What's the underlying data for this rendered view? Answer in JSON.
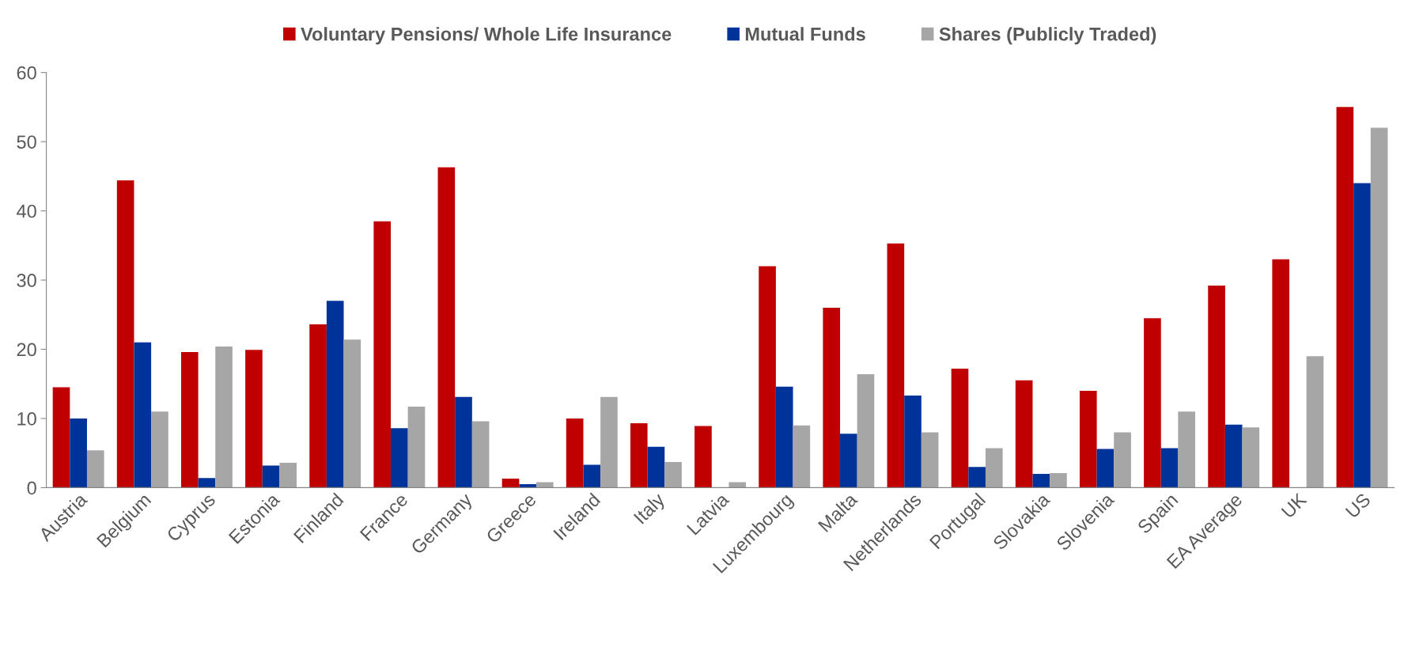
{
  "chart_data": {
    "type": "bar",
    "categories": [
      "Austria",
      "Belgium",
      "Cyprus",
      "Estonia",
      "Finland",
      "France",
      "Germany",
      "Greece",
      "Ireland",
      "Italy",
      "Latvia",
      "Luxembourg",
      "Malta",
      "Netherlands",
      "Portugal",
      "Slovakia",
      "Slovenia",
      "Spain",
      "EA Average",
      "UK",
      "US"
    ],
    "series": [
      {
        "name": "Voluntary Pensions/ Whole Life Insurance",
        "color": "#c00000",
        "values": [
          14.5,
          44.4,
          19.6,
          19.9,
          23.6,
          38.5,
          46.3,
          1.3,
          10,
          9.3,
          8.9,
          32,
          26,
          35.3,
          17.2,
          15.5,
          14,
          24.5,
          29.2,
          33,
          55
        ]
      },
      {
        "name": "Mutual Funds",
        "color": "#003399",
        "values": [
          10,
          21,
          1.4,
          3.2,
          27,
          8.6,
          13.1,
          0.5,
          3.3,
          5.9,
          0,
          14.6,
          7.8,
          13.3,
          3,
          2,
          5.6,
          5.7,
          9.1,
          null,
          44
        ]
      },
      {
        "name": "Shares (Publicly Traded)",
        "color": "#a6a6a6",
        "values": [
          5.4,
          11,
          20.4,
          3.6,
          21.4,
          11.7,
          9.6,
          0.8,
          13.1,
          3.7,
          0.8,
          9,
          16.4,
          8,
          5.7,
          2.1,
          8,
          11,
          8.7,
          19,
          52
        ]
      }
    ],
    "ylim": [
      0,
      60
    ],
    "yticks": [
      0,
      10,
      20,
      30,
      40,
      50,
      60
    ],
    "grid": false,
    "legend": "top"
  }
}
